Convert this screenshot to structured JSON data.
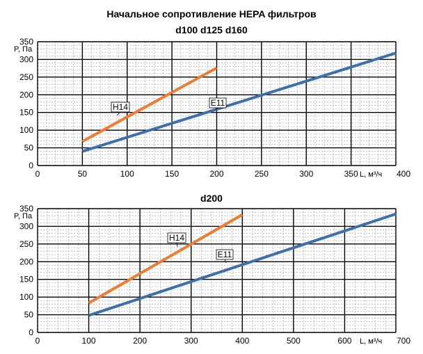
{
  "chart_title_line1": "Начальное сопротивление HEPA фильтров",
  "chart_data": [
    {
      "type": "line",
      "title": "d100 d125 d160",
      "xlabel": "L, м³/ч",
      "ylabel": "P, Па",
      "xlim": [
        0,
        400
      ],
      "ylim": [
        0,
        350
      ],
      "xticks": [
        0,
        50,
        100,
        150,
        200,
        250,
        300,
        350,
        400
      ],
      "yticks": [
        0,
        50,
        100,
        150,
        200,
        250,
        300,
        350
      ],
      "grid": true,
      "series": [
        {
          "name": "H14",
          "color": "#ed7d31",
          "x": [
            50,
            200
          ],
          "y": [
            68,
            276
          ]
        },
        {
          "name": "E11",
          "color": "#3d6fad",
          "x": [
            50,
            400
          ],
          "y": [
            40,
            318
          ]
        }
      ]
    },
    {
      "type": "line",
      "title": "d200",
      "xlabel": "L, м³/ч",
      "ylabel": "P, Па",
      "xlim": [
        0,
        700
      ],
      "ylim": [
        0,
        350
      ],
      "xticks": [
        0,
        100,
        200,
        300,
        400,
        500,
        600,
        700
      ],
      "yticks": [
        0,
        50,
        100,
        150,
        200,
        250,
        300,
        350
      ],
      "grid": true,
      "series": [
        {
          "name": "H14",
          "color": "#ed7d31",
          "x": [
            100,
            400
          ],
          "y": [
            83,
            333
          ]
        },
        {
          "name": "E11",
          "color": "#3d6fad",
          "x": [
            100,
            700
          ],
          "y": [
            48,
            335
          ]
        }
      ]
    }
  ]
}
